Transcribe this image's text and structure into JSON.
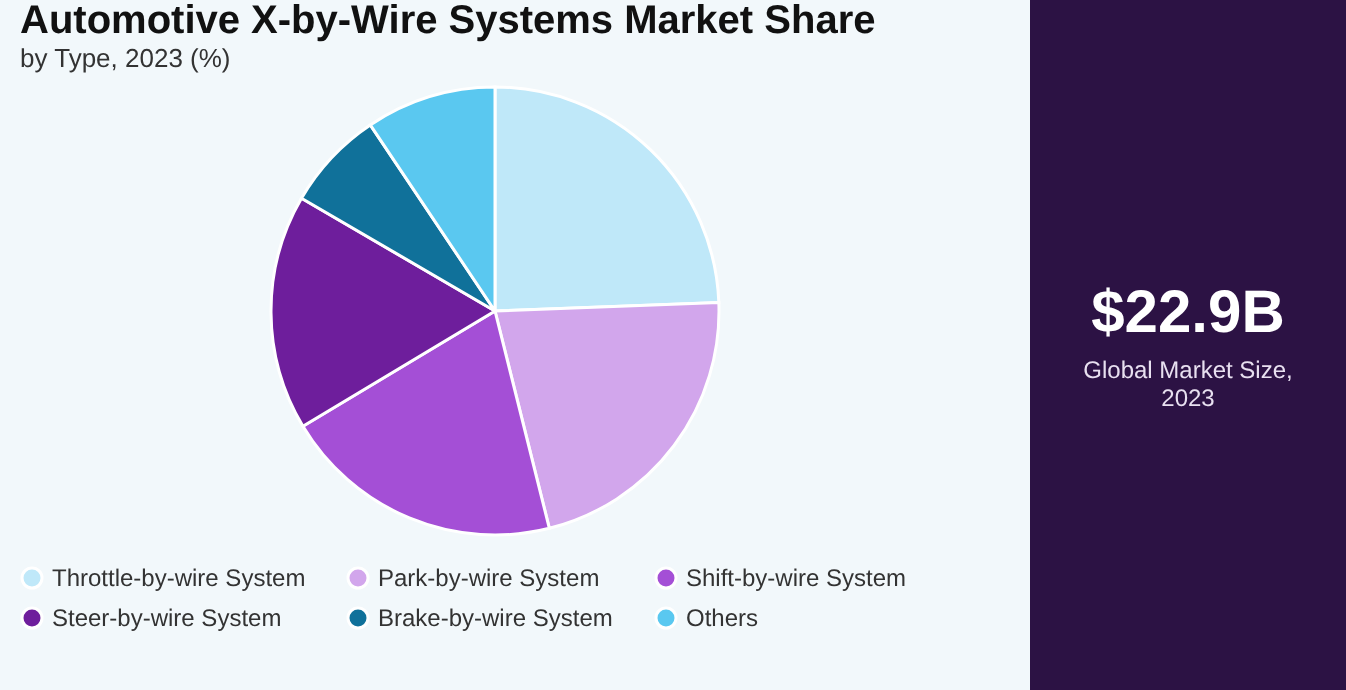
{
  "chart_data": {
    "type": "pie",
    "title": "Automotive X-by-Wire Systems Market Share",
    "subtitle": "by Type, 2023 (%)",
    "categories": [
      "Throttle-by-wire System",
      "Park-by-wire System",
      "Shift-by-wire System",
      "Steer-by-wire System",
      "Brake-by-wire System",
      "Others"
    ],
    "values": [
      24.4,
      21.7,
      20.3,
      17,
      7.2,
      9.4
    ],
    "colors": [
      "#bfe8f9",
      "#d2a6ec",
      "#a44fd6",
      "#6e1e9c",
      "#10719a",
      "#5ac8f0"
    ],
    "legend": "bottom",
    "annotations": [
      "$22.9B",
      "Global Market Size, 2023"
    ]
  }
}
